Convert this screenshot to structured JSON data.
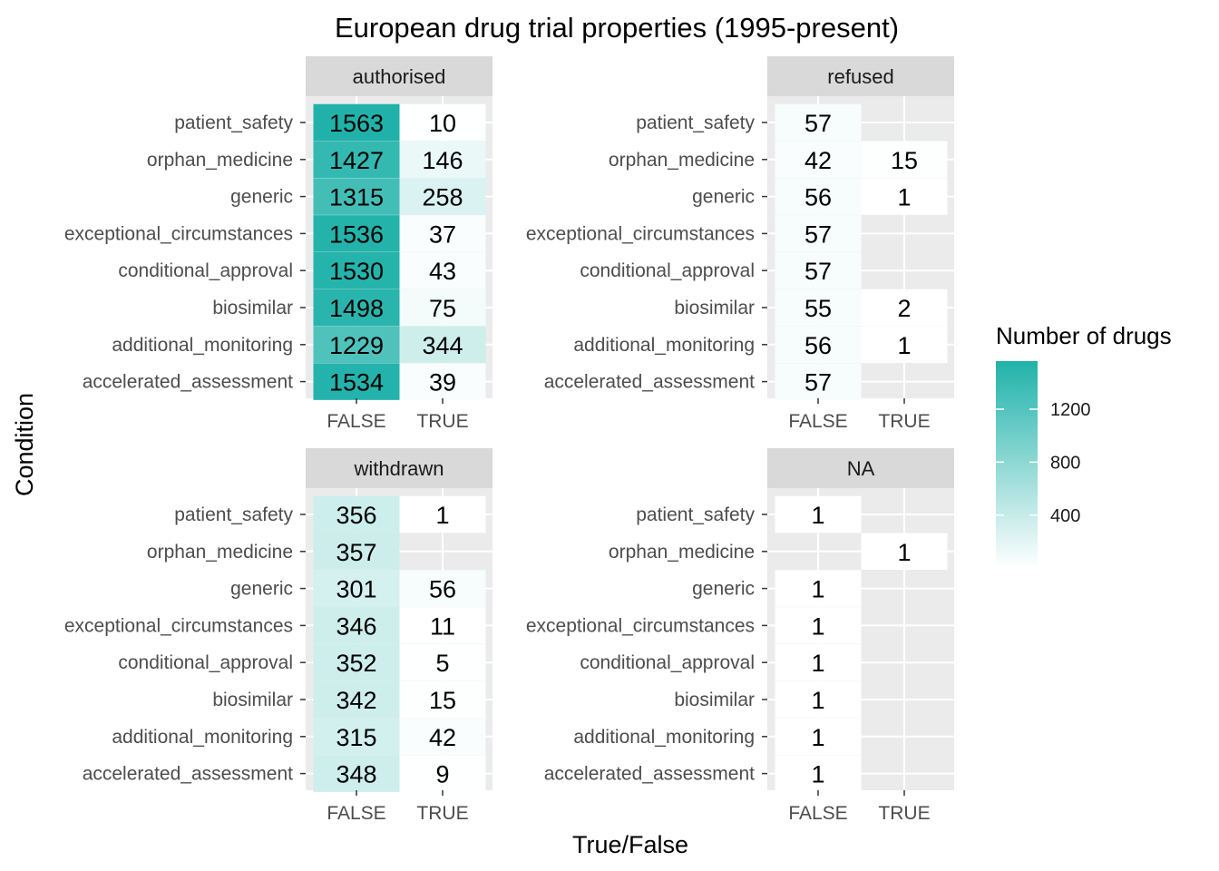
{
  "chart_data": {
    "type": "heatmap",
    "title": "European drug trial properties (1995-present)",
    "xlabel": "True/False",
    "ylabel": "Condition",
    "x_categories": [
      "FALSE",
      "TRUE"
    ],
    "y_categories": [
      "patient_safety",
      "orphan_medicine",
      "generic",
      "exceptional_circumstances",
      "conditional_approval",
      "biosimilar",
      "additional_monitoring",
      "accelerated_assessment"
    ],
    "facets": [
      {
        "label": "authorised",
        "values": [
          [
            1563,
            10
          ],
          [
            1427,
            146
          ],
          [
            1315,
            258
          ],
          [
            1536,
            37
          ],
          [
            1530,
            43
          ],
          [
            1498,
            75
          ],
          [
            1229,
            344
          ],
          [
            1534,
            39
          ]
        ]
      },
      {
        "label": "refused",
        "values": [
          [
            57,
            null
          ],
          [
            42,
            15
          ],
          [
            56,
            1
          ],
          [
            57,
            null
          ],
          [
            57,
            null
          ],
          [
            55,
            2
          ],
          [
            56,
            1
          ],
          [
            57,
            null
          ]
        ]
      },
      {
        "label": "withdrawn",
        "values": [
          [
            356,
            1
          ],
          [
            357,
            null
          ],
          [
            301,
            56
          ],
          [
            346,
            11
          ],
          [
            352,
            5
          ],
          [
            342,
            15
          ],
          [
            315,
            42
          ],
          [
            348,
            9
          ]
        ]
      },
      {
        "label": "NA",
        "values": [
          [
            1,
            null
          ],
          [
            null,
            1
          ],
          [
            1,
            null
          ],
          [
            1,
            null
          ],
          [
            1,
            null
          ],
          [
            1,
            null
          ],
          [
            1,
            null
          ],
          [
            1,
            null
          ]
        ]
      }
    ],
    "legend": {
      "title": "Number of drugs",
      "ticks": [
        400,
        800,
        1200
      ],
      "range": [
        1,
        1563
      ],
      "low_color": "#ffffff",
      "high_color": "#20b2aa",
      "placement": "right"
    },
    "panel_background": "#ebebeb",
    "strip_background": "#d9d9d9",
    "grid": true
  }
}
